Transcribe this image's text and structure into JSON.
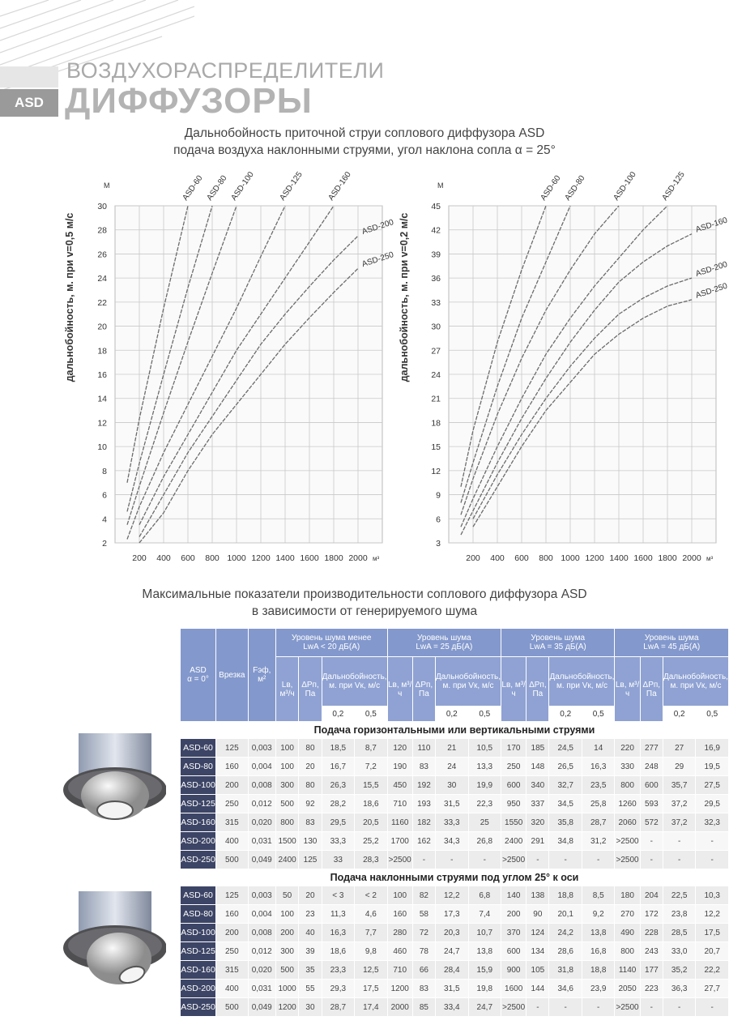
{
  "header": {
    "badge": "ASD",
    "title": "ВОЗДУХОРАСПРЕДЕЛИТЕЛИ",
    "subtitle": "ДИФФУЗОРЫ"
  },
  "charts_title": [
    "Дальнобойность приточной струи соплового диффузора ASD",
    "подача воздуха наклонными струями, угол наклона сопла α = 25°"
  ],
  "chart_data": [
    {
      "type": "line",
      "y_label": "дальнобойность, м. при v=0,5 м/с",
      "y_unit": "М",
      "x_unit": "м³",
      "x": [
        100,
        200,
        400,
        600,
        800,
        1000,
        1200,
        1400,
        1600,
        1800,
        2000
      ],
      "xlim": [
        0,
        2200
      ],
      "xticks": [
        200,
        400,
        600,
        800,
        1000,
        1200,
        1400,
        1600,
        1800,
        2000
      ],
      "ylim": [
        2,
        30
      ],
      "yticks": [
        2,
        4,
        6,
        8,
        10,
        12,
        14,
        16,
        18,
        20,
        22,
        24,
        26,
        28,
        30
      ],
      "grid": true,
      "series": [
        {
          "name": "ASD-60",
          "color": "#6b6b6b",
          "values": [
            7,
            12.3,
            21.5,
            30,
            null,
            null,
            null,
            null,
            null,
            null,
            null
          ]
        },
        {
          "name": "ASD-80",
          "color": "#6b6b6b",
          "values": [
            4.6,
            8.6,
            16,
            23.2,
            30,
            null,
            null,
            null,
            null,
            null,
            null
          ]
        },
        {
          "name": "ASD-100",
          "color": "#6b6b6b",
          "values": [
            3.5,
            6.7,
            12.8,
            18.7,
            24.4,
            30,
            null,
            null,
            null,
            null,
            null
          ]
        },
        {
          "name": "ASD-125",
          "color": "#6b6b6b",
          "values": [
            2.3,
            5,
            9.5,
            13.5,
            17.5,
            21.5,
            25.8,
            30,
            null,
            null,
            null
          ]
        },
        {
          "name": "ASD-160",
          "color": "#6b6b6b",
          "values": [
            null,
            3.5,
            7.5,
            11,
            14.5,
            18,
            21,
            24,
            27,
            30,
            null
          ]
        },
        {
          "name": "ASD-200",
          "color": "#6b6b6b",
          "values": [
            null,
            2.5,
            6,
            9.5,
            12.5,
            15.5,
            18.5,
            21,
            23.3,
            25.5,
            27.5
          ]
        },
        {
          "name": "ASD-250",
          "color": "#6b6b6b",
          "values": [
            null,
            2,
            4.5,
            8,
            11,
            13.5,
            16,
            18.5,
            20.7,
            22.8,
            24.8
          ]
        }
      ]
    },
    {
      "type": "line",
      "y_label": "дальнобойность, м. при v=0,2 м/с",
      "y_unit": "М",
      "x_unit": "м³",
      "x": [
        100,
        200,
        400,
        600,
        800,
        1000,
        1200,
        1400,
        1600,
        1800,
        2000
      ],
      "xlim": [
        0,
        2200
      ],
      "xticks": [
        200,
        400,
        600,
        800,
        1000,
        1200,
        1400,
        1600,
        1800,
        2000
      ],
      "ylim": [
        3,
        45
      ],
      "yticks": [
        3,
        6,
        9,
        12,
        15,
        18,
        21,
        24,
        27,
        30,
        33,
        36,
        39,
        42,
        45
      ],
      "grid": true,
      "series": [
        {
          "name": "ASD-60",
          "color": "#6b6b6b",
          "values": [
            10,
            17,
            28,
            37,
            45,
            null,
            null,
            null,
            null,
            null,
            null
          ]
        },
        {
          "name": "ASD-80",
          "color": "#6b6b6b",
          "values": [
            8,
            13,
            22.5,
            31,
            38,
            45,
            null,
            null,
            null,
            null,
            null
          ]
        },
        {
          "name": "ASD-100",
          "color": "#6b6b6b",
          "values": [
            6.5,
            11,
            19,
            26,
            32,
            37,
            41.5,
            45,
            null,
            null,
            null
          ]
        },
        {
          "name": "ASD-125",
          "color": "#6b6b6b",
          "values": [
            5,
            8.5,
            15,
            21,
            26.5,
            31,
            35,
            38.5,
            42,
            45,
            null
          ]
        },
        {
          "name": "ASD-160",
          "color": "#6b6b6b",
          "values": [
            4,
            7,
            13,
            18.5,
            23.5,
            28,
            32,
            35.5,
            38,
            40,
            41.5
          ]
        },
        {
          "name": "ASD-200",
          "color": "#6b6b6b",
          "values": [
            null,
            6,
            11.5,
            16.5,
            21,
            25,
            28.5,
            31.5,
            33.5,
            35,
            36
          ]
        },
        {
          "name": "ASD-250",
          "color": "#6b6b6b",
          "values": [
            null,
            5,
            10,
            15,
            19.5,
            23,
            26.5,
            29,
            31,
            32.5,
            33.3
          ]
        }
      ]
    }
  ],
  "table_title": [
    "Максимальные показатели производительности соплового диффузора ASD",
    "в зависимости от генерируемого шума"
  ],
  "table": {
    "corner": [
      "ASD",
      "α = 0°"
    ],
    "cut": "Врезка",
    "area": "Fэф, м²",
    "groups": [
      [
        "Уровень шума менее",
        "LwA < 20 дБ(A)"
      ],
      [
        "Уровень шума",
        "LwA = 25 дБ(A)"
      ],
      [
        "Уровень шума",
        "LwA = 35 дБ(A)"
      ],
      [
        "Уровень шума",
        "LwA = 45 дБ(A)"
      ]
    ],
    "subheaders": [
      "Lв, м³/ч",
      "ΔPп, Па",
      "Дальнобойность, м. при Vк, м/с"
    ],
    "speeds": [
      "0,2",
      "0,5"
    ],
    "sections": [
      {
        "title": "Подача горизонтальными или вертикальными струями",
        "rows": [
          [
            "ASD-60",
            "125",
            "0,003",
            "100",
            "80",
            "18,5",
            "8,7",
            "120",
            "110",
            "21",
            "10,5",
            "170",
            "185",
            "24,5",
            "14",
            "220",
            "277",
            "27",
            "16,9"
          ],
          [
            "ASD-80",
            "160",
            "0,004",
            "100",
            "20",
            "16,7",
            "7,2",
            "190",
            "83",
            "24",
            "13,3",
            "250",
            "148",
            "26,5",
            "16,3",
            "330",
            "248",
            "29",
            "19,5"
          ],
          [
            "ASD-100",
            "200",
            "0,008",
            "300",
            "80",
            "26,3",
            "15,5",
            "450",
            "192",
            "30",
            "19,9",
            "600",
            "340",
            "32,7",
            "23,5",
            "800",
            "600",
            "35,7",
            "27,5"
          ],
          [
            "ASD-125",
            "250",
            "0,012",
            "500",
            "92",
            "28,2",
            "18,6",
            "710",
            "193",
            "31,5",
            "22,3",
            "950",
            "337",
            "34,5",
            "25,8",
            "1260",
            "593",
            "37,2",
            "29,5"
          ],
          [
            "ASD-160",
            "315",
            "0,020",
            "800",
            "83",
            "29,5",
            "20,5",
            "1160",
            "182",
            "33,3",
            "25",
            "1550",
            "320",
            "35,8",
            "28,7",
            "2060",
            "572",
            "37,2",
            "32,3"
          ],
          [
            "ASD-200",
            "400",
            "0,031",
            "1500",
            "130",
            "33,3",
            "25,2",
            "1700",
            "162",
            "34,3",
            "26,8",
            "2400",
            "291",
            "34,8",
            "31,2",
            ">2500",
            "-",
            "-",
            "-"
          ],
          [
            "ASD-250",
            "500",
            "0,049",
            "2400",
            "125",
            "33",
            "28,3",
            ">2500",
            "-",
            "-",
            "-",
            ">2500",
            "-",
            "-",
            "-",
            ">2500",
            "-",
            "-",
            "-"
          ]
        ]
      },
      {
        "title": "Подача наклонными струями под углом 25° к оси",
        "rows": [
          [
            "ASD-60",
            "125",
            "0,003",
            "50",
            "20",
            "< 3",
            "< 2",
            "100",
            "82",
            "12,2",
            "6,8",
            "140",
            "138",
            "18,8",
            "8,5",
            "180",
            "204",
            "22,5",
            "10,3"
          ],
          [
            "ASD-80",
            "160",
            "0,004",
            "100",
            "23",
            "11,3",
            "4,6",
            "160",
            "58",
            "17,3",
            "7,4",
            "200",
            "90",
            "20,1",
            "9,2",
            "270",
            "172",
            "23,8",
            "12,2"
          ],
          [
            "ASD-100",
            "200",
            "0,008",
            "200",
            "40",
            "16,3",
            "7,7",
            "280",
            "72",
            "20,3",
            "10,7",
            "370",
            "124",
            "24,2",
            "13,8",
            "490",
            "228",
            "28,5",
            "17,5"
          ],
          [
            "ASD-125",
            "250",
            "0,012",
            "300",
            "39",
            "18,6",
            "9,8",
            "460",
            "78",
            "24,7",
            "13,8",
            "600",
            "134",
            "28,6",
            "16,8",
            "800",
            "243",
            "33,0",
            "20,7"
          ],
          [
            "ASD-160",
            "315",
            "0,020",
            "500",
            "35",
            "23,3",
            "12,5",
            "710",
            "66",
            "28,4",
            "15,9",
            "900",
            "105",
            "31,8",
            "18,8",
            "1140",
            "177",
            "35,2",
            "22,2"
          ],
          [
            "ASD-200",
            "400",
            "0,031",
            "1000",
            "55",
            "29,3",
            "17,5",
            "1200",
            "83",
            "31,5",
            "19,8",
            "1600",
            "144",
            "34,6",
            "23,9",
            "2050",
            "223",
            "36,3",
            "27,7"
          ],
          [
            "ASD-250",
            "500",
            "0,049",
            "1200",
            "30",
            "28,7",
            "17,4",
            "2000",
            "85",
            "33,4",
            "24,7",
            ">2500",
            "-",
            "-",
            "-",
            ">2500",
            "-",
            "-",
            "-"
          ]
        ]
      }
    ]
  }
}
